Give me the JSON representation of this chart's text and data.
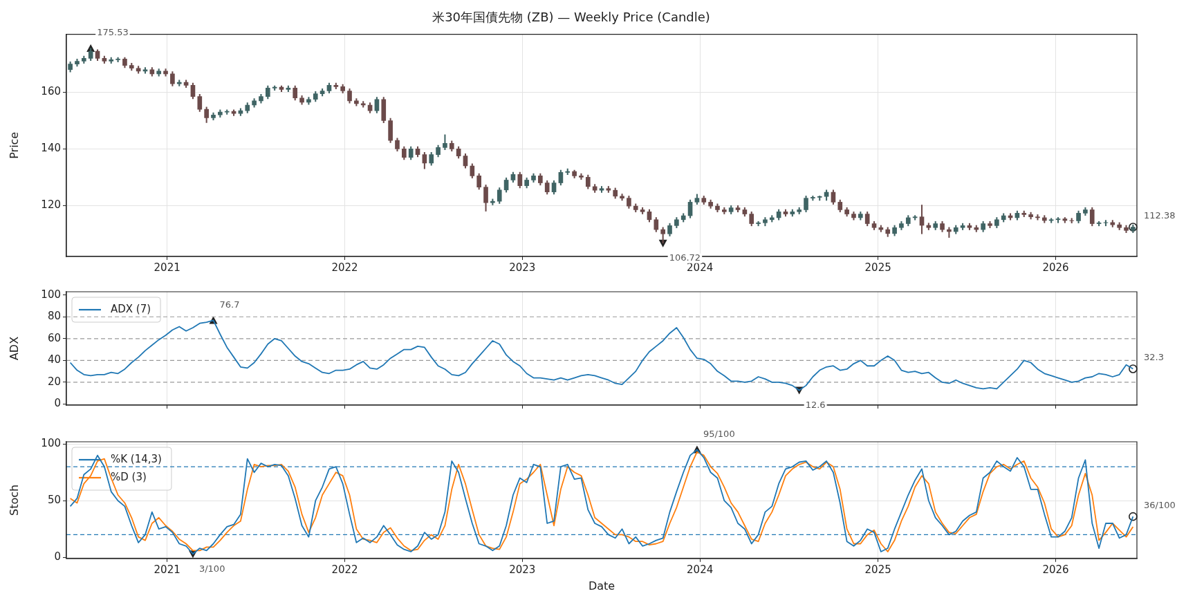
{
  "chart_data": [
    {
      "type": "candlestick",
      "title": "米30年国債先物 (ZB) — Weekly Price (Candle)",
      "ylabel": "Price",
      "grid": true,
      "colors": [
        "#3f6464",
        "#3f6464",
        "#3f6464",
        "#3f6464",
        "#6b4a4a",
        "#6b4a4a",
        "#3f6464",
        "#3f6464",
        "#6b4a4a",
        "#6b4a4a",
        "#6b4a4a",
        "#3f6464",
        "#6b4a4a",
        "#3f6464",
        "#6b4a4a",
        "#6b4a4a",
        "#3f6464",
        "#6b4a4a",
        "#6b4a4a",
        "#6b4a4a",
        "#6b4a4a",
        "#3f6464",
        "#3f6464",
        "#3f6464",
        "#6b4a4a",
        "#3f6464",
        "#3f6464",
        "#3f6464",
        "#3f6464",
        "#3f6464",
        "#3f6464",
        "#6b4a4a",
        "#3f6464",
        "#6b4a4a",
        "#6b4a4a",
        "#3f6464",
        "#3f6464",
        "#3f6464",
        "#3f6464",
        "#6b4a4a",
        "#6b4a4a",
        "#6b4a4a",
        "#6b4a4a",
        "#6b4a4a",
        "#6b4a4a",
        "#3f6464",
        "#6b4a4a",
        "#6b4a4a",
        "#6b4a4a",
        "#6b4a4a",
        "#3f6464",
        "#6b4a4a",
        "#6b4a4a",
        "#3f6464",
        "#3f6464",
        "#3f6464",
        "#6b4a4a",
        "#6b4a4a",
        "#6b4a4a",
        "#6b4a4a",
        "#6b4a4a",
        "#6b4a4a",
        "#3f6464",
        "#3f6464",
        "#3f6464",
        "#3f6464",
        "#6b4a4a",
        "#3f6464",
        "#3f6464",
        "#6b4a4a",
        "#6b4a4a",
        "#3f6464",
        "#3f6464",
        "#3f6464",
        "#6b4a4a",
        "#6b4a4a",
        "#6b4a4a",
        "#6b4a4a",
        "#3f6464",
        "#6b4a4a",
        "#6b4a4a",
        "#6b4a4a",
        "#6b4a4a",
        "#6b4a4a",
        "#6b4a4a",
        "#6b4a4a",
        "#6b4a4a",
        "#6b4a4a",
        "#3f6464",
        "#3f6464",
        "#3f6464",
        "#3f6464",
        "#3f6464",
        "#6b4a4a",
        "#6b4a4a",
        "#6b4a4a",
        "#6b4a4a",
        "#3f6464",
        "#6b4a4a",
        "#6b4a4a",
        "#6b4a4a",
        "#3f6464",
        "#3f6464",
        "#3f6464",
        "#3f6464",
        "#6b4a4a",
        "#3f6464",
        "#3f6464",
        "#3f6464",
        "#3f6464",
        "#3f6464",
        "#3f6464",
        "#6b4a4a",
        "#6b4a4a",
        "#6b4a4a",
        "#6b4a4a",
        "#3f6464",
        "#6b4a4a",
        "#6b4a4a",
        "#6b4a4a",
        "#6b4a4a",
        "#3f6464",
        "#3f6464",
        "#3f6464",
        "#3f6464",
        "#6b4a4a",
        "#6b4a4a",
        "#3f6464",
        "#6b4a4a",
        "#6b4a4a",
        "#3f6464",
        "#3f6464",
        "#6b4a4a",
        "#6b4a4a",
        "#3f6464",
        "#6b4a4a",
        "#3f6464",
        "#3f6464",
        "#6b4a4a",
        "#3f6464",
        "#6b4a4a",
        "#6b4a4a",
        "#6b4a4a",
        "#6b4a4a",
        "#3f6464",
        "#3f6464",
        "#6b4a4a",
        "#6b4a4a",
        "#3f6464",
        "#3f6464",
        "#6b4a4a",
        "#3f6464",
        "#3f6464",
        "#6b4a4a",
        "#6b4a4a",
        "#6b4a4a",
        "#3f6464"
      ],
      "xlim": [
        "2020-06-08",
        "2026-06-17"
      ],
      "xticks": [
        "2021",
        "2022",
        "2023",
        "2024",
        "2025",
        "2026"
      ],
      "ylim": [
        102,
        180.5
      ],
      "yticks": [
        120,
        140,
        160
      ],
      "x": [
        "2020-06-16",
        "2020-06-30",
        "2020-07-14",
        "2020-07-28",
        "2020-08-11",
        "2020-08-25",
        "2020-09-08",
        "2020-09-22",
        "2020-10-06",
        "2020-10-20",
        "2020-11-03",
        "2020-11-17",
        "2020-12-01",
        "2020-12-15",
        "2020-12-29",
        "2021-01-12",
        "2021-01-26",
        "2021-02-09",
        "2021-02-23",
        "2021-03-09",
        "2021-03-23",
        "2021-04-06",
        "2021-04-20",
        "2021-05-04",
        "2021-05-18",
        "2021-06-01",
        "2021-06-15",
        "2021-06-29",
        "2021-07-13",
        "2021-07-27",
        "2021-08-10",
        "2021-08-24",
        "2021-09-07",
        "2021-09-21",
        "2021-10-05",
        "2021-10-19",
        "2021-11-02",
        "2021-11-16",
        "2021-11-30",
        "2021-12-14",
        "2021-12-28",
        "2022-01-11",
        "2022-01-25",
        "2022-02-08",
        "2022-02-22",
        "2022-03-08",
        "2022-03-22",
        "2022-04-05",
        "2022-04-19",
        "2022-05-03",
        "2022-05-17",
        "2022-05-31",
        "2022-06-14",
        "2022-06-28",
        "2022-07-12",
        "2022-07-26",
        "2022-08-09",
        "2022-08-23",
        "2022-09-06",
        "2022-09-20",
        "2022-10-04",
        "2022-10-18",
        "2022-11-01",
        "2022-11-15",
        "2022-11-29",
        "2022-12-13",
        "2022-12-27",
        "2023-01-10",
        "2023-01-24",
        "2023-02-07",
        "2023-02-21",
        "2023-03-07",
        "2023-03-21",
        "2023-04-04",
        "2023-04-18",
        "2023-05-02",
        "2023-05-16",
        "2023-05-30",
        "2023-06-13",
        "2023-06-27",
        "2023-07-11",
        "2023-07-25",
        "2023-08-08",
        "2023-08-22",
        "2023-09-05",
        "2023-09-19",
        "2023-10-03",
        "2023-10-17",
        "2023-10-31",
        "2023-11-14",
        "2023-11-28",
        "2023-12-12",
        "2023-12-26",
        "2024-01-09",
        "2024-01-23",
        "2024-02-06",
        "2024-02-20",
        "2024-03-05",
        "2024-03-19",
        "2024-04-02",
        "2024-04-16",
        "2024-04-30",
        "2024-05-14",
        "2024-05-28",
        "2024-06-11",
        "2024-06-25",
        "2024-07-09",
        "2024-07-23",
        "2024-08-06",
        "2024-08-20",
        "2024-09-03",
        "2024-09-17",
        "2024-10-01",
        "2024-10-15",
        "2024-10-29",
        "2024-11-12",
        "2024-11-26",
        "2024-12-10",
        "2024-12-24",
        "2025-01-07",
        "2025-01-21",
        "2025-02-04",
        "2025-02-18",
        "2025-03-04",
        "2025-03-18",
        "2025-04-01",
        "2025-04-15",
        "2025-04-29",
        "2025-05-13",
        "2025-05-27",
        "2025-06-10",
        "2025-06-24",
        "2025-07-08",
        "2025-07-22",
        "2025-08-05",
        "2025-08-19",
        "2025-09-02",
        "2025-09-16",
        "2025-09-30",
        "2025-10-14",
        "2025-10-28",
        "2025-11-11",
        "2025-11-25",
        "2025-12-09",
        "2025-12-23",
        "2026-01-06",
        "2026-01-20",
        "2026-02-03",
        "2026-02-17",
        "2026-03-03",
        "2026-03-17",
        "2026-03-31",
        "2026-04-14",
        "2026-04-28",
        "2026-05-12",
        "2026-05-26",
        "2026-06-09"
      ],
      "ohlc": [
        [
          168,
          170.8,
          167.2,
          170
        ],
        [
          170,
          171.8,
          169.2,
          171
        ],
        [
          171,
          172.8,
          170.2,
          172
        ],
        [
          172,
          175.53,
          171.2,
          174.5
        ],
        [
          174.5,
          175.1,
          171.2,
          172
        ],
        [
          172,
          172.8,
          170.2,
          171
        ],
        [
          171,
          172.3,
          170.2,
          171.5
        ],
        [
          171.5,
          172.3,
          170.7,
          171.8
        ],
        [
          171.8,
          172.3,
          168.7,
          169.5
        ],
        [
          169.5,
          170.3,
          167.7,
          168.5
        ],
        [
          168.5,
          169.3,
          166.7,
          167.5
        ],
        [
          167.5,
          168.8,
          166.7,
          168
        ],
        [
          168,
          168.8,
          165.7,
          166.5
        ],
        [
          166.5,
          168.3,
          165.7,
          167.5
        ],
        [
          167.5,
          168.3,
          165.7,
          166.5
        ],
        [
          166.5,
          167.3,
          162.2,
          163
        ],
        [
          163,
          164.3,
          162.2,
          163.5
        ],
        [
          163.5,
          164.3,
          161.7,
          162.5
        ],
        [
          162.5,
          163.3,
          157.7,
          158.5
        ],
        [
          158.5,
          159.3,
          153.2,
          154
        ],
        [
          154,
          154.8,
          149.3,
          151
        ],
        [
          151,
          152.8,
          150.2,
          152
        ],
        [
          152,
          153.8,
          151.2,
          153
        ],
        [
          153,
          153.8,
          152.2,
          153.3
        ],
        [
          153.3,
          153.8,
          151.7,
          152.5
        ],
        [
          152.5,
          154.3,
          151.7,
          153.5
        ],
        [
          153.5,
          156.3,
          152.7,
          155.5
        ],
        [
          155.5,
          157.8,
          154.7,
          157
        ],
        [
          157,
          159.3,
          156.2,
          158.5
        ],
        [
          158.5,
          162.3,
          157.7,
          161.5
        ],
        [
          161.5,
          162.3,
          160.7,
          161.8
        ],
        [
          161.8,
          162.3,
          160.2,
          161
        ],
        [
          161,
          162.3,
          160.2,
          161.5
        ],
        [
          161.5,
          162.3,
          157.2,
          158
        ],
        [
          158,
          158.8,
          155.7,
          156.5
        ],
        [
          156.5,
          158.3,
          155.7,
          157.5
        ],
        [
          157.5,
          160.3,
          156.7,
          159.5
        ],
        [
          159.5,
          161.3,
          158.7,
          160.5
        ],
        [
          160.5,
          163.3,
          159.7,
          162.5
        ],
        [
          162.5,
          163.3,
          161.2,
          162
        ],
        [
          162,
          162.8,
          159.7,
          160.5
        ],
        [
          160.5,
          161.3,
          156.2,
          157
        ],
        [
          157,
          157.8,
          155.2,
          156
        ],
        [
          156,
          156.8,
          154.7,
          155.5
        ],
        [
          155.5,
          156.3,
          152.7,
          153.5
        ],
        [
          153.5,
          158.3,
          152.7,
          157.5
        ],
        [
          157.5,
          158.3,
          149.2,
          150
        ],
        [
          150,
          150.8,
          142.2,
          143
        ],
        [
          143,
          143.8,
          139.2,
          140
        ],
        [
          140,
          140.8,
          136.2,
          137
        ],
        [
          137,
          140.8,
          136.2,
          140
        ],
        [
          140,
          140.8,
          137.2,
          138
        ],
        [
          138,
          138.8,
          133,
          135
        ],
        [
          135,
          138.8,
          134.2,
          138
        ],
        [
          138,
          141.3,
          137.2,
          140.5
        ],
        [
          140.5,
          145,
          139.7,
          142
        ],
        [
          142,
          142.8,
          139.2,
          140
        ],
        [
          140,
          140.8,
          136.7,
          137.5
        ],
        [
          137.5,
          138.3,
          133.2,
          134
        ],
        [
          134,
          134.8,
          129.7,
          130.5
        ],
        [
          130.5,
          131.3,
          125.7,
          126.5
        ],
        [
          126.5,
          127.3,
          118,
          121
        ],
        [
          121,
          122.3,
          120.2,
          121.5
        ],
        [
          121.5,
          126.3,
          120.7,
          125.5
        ],
        [
          125.5,
          129.8,
          124.7,
          129
        ],
        [
          129,
          131.8,
          128.2,
          131
        ],
        [
          131,
          131.8,
          126.2,
          127
        ],
        [
          127,
          129.8,
          126.2,
          129
        ],
        [
          129,
          131.3,
          128.2,
          130.5
        ],
        [
          130.5,
          131.3,
          127.2,
          128
        ],
        [
          128,
          128.8,
          124,
          124.8
        ],
        [
          124.8,
          128.8,
          124,
          128
        ],
        [
          128,
          132.5,
          127.2,
          131.7
        ],
        [
          131.7,
          133,
          130.9,
          132
        ],
        [
          132,
          132.5,
          129.7,
          130.5
        ],
        [
          130.5,
          131.3,
          129.2,
          130
        ],
        [
          130,
          130.8,
          125.9,
          126.7
        ],
        [
          126.7,
          127.5,
          124.6,
          125.4
        ],
        [
          125.4,
          126.8,
          124.6,
          126
        ],
        [
          126,
          126.8,
          124.6,
          125.4
        ],
        [
          125.4,
          126.2,
          122.5,
          123.3
        ],
        [
          123.3,
          124.1,
          121.8,
          122.6
        ],
        [
          122.6,
          123.4,
          119,
          119.8
        ],
        [
          119.8,
          120.6,
          117.7,
          118.5
        ],
        [
          118.5,
          119.3,
          117,
          117.8
        ],
        [
          117.8,
          118.6,
          114.2,
          115
        ],
        [
          115,
          115.8,
          110.7,
          111.5
        ],
        [
          111.5,
          112.3,
          106.72,
          110
        ],
        [
          110,
          113.7,
          109.2,
          112.9
        ],
        [
          112.9,
          115.8,
          112.1,
          115
        ],
        [
          115,
          117.2,
          114.2,
          116.4
        ],
        [
          116.4,
          122,
          115.6,
          121.2
        ],
        [
          121.2,
          124,
          120.4,
          122.6
        ],
        [
          122.6,
          123.4,
          120.4,
          121.2
        ],
        [
          121.2,
          122,
          119,
          119.8
        ],
        [
          119.8,
          120.6,
          117.7,
          118.5
        ],
        [
          118.5,
          119.3,
          117,
          117.8
        ],
        [
          117.8,
          120,
          117,
          119.2
        ],
        [
          119.2,
          120,
          117.7,
          118.5
        ],
        [
          118.5,
          119.3,
          116.2,
          117
        ],
        [
          117,
          117.8,
          112.8,
          113.6
        ],
        [
          113.6,
          114.4,
          112.8,
          113.9
        ],
        [
          113.9,
          115.8,
          112.8,
          115
        ],
        [
          115,
          116.5,
          114.2,
          115.7
        ],
        [
          115.7,
          118.6,
          114.9,
          117.8
        ],
        [
          117.8,
          118.6,
          116.2,
          117
        ],
        [
          117,
          118.6,
          116.2,
          117.8
        ],
        [
          117.8,
          119.3,
          117,
          118.5
        ],
        [
          118.5,
          123.4,
          117.7,
          122.6
        ],
        [
          122.6,
          123.4,
          121.8,
          122.9
        ],
        [
          122.9,
          123.4,
          121.8,
          123.2
        ],
        [
          123.2,
          125.5,
          121.8,
          124.7
        ],
        [
          124.7,
          125.5,
          120.4,
          121.2
        ],
        [
          121.2,
          122,
          117.7,
          118.5
        ],
        [
          118.5,
          119.3,
          116.2,
          117
        ],
        [
          117,
          117.8,
          114.9,
          115.7
        ],
        [
          115.7,
          117.8,
          114.9,
          117
        ],
        [
          117,
          117.8,
          112.8,
          113.6
        ],
        [
          113.6,
          114.4,
          111.4,
          112.2
        ],
        [
          112.2,
          113,
          110.7,
          111.5
        ],
        [
          111.5,
          112.3,
          109,
          110.1
        ],
        [
          110.1,
          113,
          109.3,
          112.2
        ],
        [
          112.2,
          114.4,
          111.4,
          113.6
        ],
        [
          113.6,
          116.5,
          112.8,
          115.7
        ],
        [
          115.7,
          116.5,
          114.9,
          116
        ],
        [
          116,
          120.2,
          110,
          113
        ],
        [
          113,
          113.8,
          111.4,
          112.2
        ],
        [
          112.2,
          114.4,
          111.4,
          113.6
        ],
        [
          113.6,
          114.4,
          110.7,
          111.5
        ],
        [
          111.5,
          112.3,
          108.7,
          110.8
        ],
        [
          110.8,
          113,
          110,
          112.2
        ],
        [
          112.2,
          113.7,
          111.4,
          112.9
        ],
        [
          112.9,
          113.7,
          111.4,
          112.2
        ],
        [
          112.2,
          113,
          110.7,
          111.5
        ],
        [
          111.5,
          114.4,
          110.7,
          113.6
        ],
        [
          113.6,
          114.4,
          112.1,
          112.9
        ],
        [
          112.9,
          115.8,
          112.1,
          115
        ],
        [
          115,
          117.2,
          114.2,
          116.4
        ],
        [
          116.4,
          117.2,
          114.9,
          115.7
        ],
        [
          115.7,
          118.1,
          114.9,
          117.3
        ],
        [
          117.3,
          118.1,
          116,
          116.8
        ],
        [
          116.8,
          117.6,
          115.2,
          116
        ],
        [
          116,
          116.8,
          114.9,
          115.7
        ],
        [
          115.7,
          116.5,
          113.9,
          114.7
        ],
        [
          114.7,
          115.5,
          113.9,
          115
        ],
        [
          115,
          115.8,
          113.9,
          115.3
        ],
        [
          115.3,
          115.8,
          113.9,
          114.7
        ],
        [
          114.7,
          115.5,
          113.8,
          114.6
        ],
        [
          114.6,
          118.1,
          113.8,
          117.3
        ],
        [
          117.3,
          119.3,
          116.5,
          118.5
        ],
        [
          118.5,
          119.3,
          112.8,
          113.6
        ],
        [
          113.6,
          114.4,
          112.8,
          113.9
        ],
        [
          113.9,
          114.8,
          112.8,
          114
        ],
        [
          114,
          114.8,
          112.4,
          113.2
        ],
        [
          113.2,
          114,
          111.4,
          112.2
        ],
        [
          112.2,
          113,
          110.4,
          111.2
        ],
        [
          111.2,
          113.2,
          110.4,
          112.38
        ]
      ],
      "annotations": [
        {
          "text": "175.53",
          "x": "2020-07-28",
          "y": 175.53
        },
        {
          "text": "106.72",
          "x": "2023-10-17",
          "y": 106.72
        },
        {
          "text": "112.38",
          "x": "2026-06-09",
          "y": 112.38
        }
      ]
    },
    {
      "type": "line",
      "ylabel": "ADX",
      "grid": "x",
      "legend": "top left",
      "tick_labels": "y",
      "xlim": [
        "2020-06-08",
        "2026-06-17"
      ],
      "xticks": [
        "2021",
        "2022",
        "2023",
        "2024",
        "2025",
        "2026"
      ],
      "ylim": [
        -1,
        103
      ],
      "yticks": [
        0,
        20,
        40,
        60,
        80,
        100
      ],
      "x": [
        "2020-06-16",
        "2020-06-30",
        "2020-07-14",
        "2020-07-28",
        "2020-08-11",
        "2020-08-25",
        "2020-09-08",
        "2020-09-22",
        "2020-10-06",
        "2020-10-20",
        "2020-11-03",
        "2020-11-17",
        "2020-12-01",
        "2020-12-15",
        "2020-12-29",
        "2021-01-12",
        "2021-01-26",
        "2021-02-09",
        "2021-02-23",
        "2021-03-09",
        "2021-03-23",
        "2021-04-06",
        "2021-04-20",
        "2021-05-04",
        "2021-05-18",
        "2021-06-01",
        "2021-06-15",
        "2021-06-29",
        "2021-07-13",
        "2021-07-27",
        "2021-08-10",
        "2021-08-24",
        "2021-09-07",
        "2021-09-21",
        "2021-10-05",
        "2021-10-19",
        "2021-11-02",
        "2021-11-16",
        "2021-11-30",
        "2021-12-14",
        "2021-12-28",
        "2022-01-11",
        "2022-01-25",
        "2022-02-08",
        "2022-02-22",
        "2022-03-08",
        "2022-03-22",
        "2022-04-05",
        "2022-04-19",
        "2022-05-03",
        "2022-05-17",
        "2022-05-31",
        "2022-06-14",
        "2022-06-28",
        "2022-07-12",
        "2022-07-26",
        "2022-08-09",
        "2022-08-23",
        "2022-09-06",
        "2022-09-20",
        "2022-10-04",
        "2022-10-18",
        "2022-11-01",
        "2022-11-15",
        "2022-11-29",
        "2022-12-13",
        "2022-12-27",
        "2023-01-10",
        "2023-01-24",
        "2023-02-07",
        "2023-02-21",
        "2023-03-07",
        "2023-03-21",
        "2023-04-04",
        "2023-04-18",
        "2023-05-02",
        "2023-05-16",
        "2023-05-30",
        "2023-06-13",
        "2023-06-27",
        "2023-07-11",
        "2023-07-25",
        "2023-08-08",
        "2023-08-22",
        "2023-09-05",
        "2023-09-19",
        "2023-10-03",
        "2023-10-17",
        "2023-10-31",
        "2023-11-14",
        "2023-11-28",
        "2023-12-12",
        "2023-12-26",
        "2024-01-09",
        "2024-01-23",
        "2024-02-06",
        "2024-02-20",
        "2024-03-05",
        "2024-03-19",
        "2024-04-02",
        "2024-04-16",
        "2024-04-30",
        "2024-05-14",
        "2024-05-28",
        "2024-06-11",
        "2024-06-25",
        "2024-07-09",
        "2024-07-23",
        "2024-08-06",
        "2024-08-20",
        "2024-09-03",
        "2024-09-17",
        "2024-10-01",
        "2024-10-15",
        "2024-10-29",
        "2024-11-12",
        "2024-11-26",
        "2024-12-10",
        "2024-12-24",
        "2025-01-07",
        "2025-01-21",
        "2025-02-04",
        "2025-02-18",
        "2025-03-04",
        "2025-03-18",
        "2025-04-01",
        "2025-04-15",
        "2025-04-29",
        "2025-05-13",
        "2025-05-27",
        "2025-06-10",
        "2025-06-24",
        "2025-07-08",
        "2025-07-22",
        "2025-08-05",
        "2025-08-19",
        "2025-09-02",
        "2025-09-16",
        "2025-09-30",
        "2025-10-14",
        "2025-10-28",
        "2025-11-11",
        "2025-11-25",
        "2025-12-09",
        "2025-12-23",
        "2026-01-06",
        "2026-01-20",
        "2026-02-03",
        "2026-02-17",
        "2026-03-03",
        "2026-03-17",
        "2026-03-31",
        "2026-04-14",
        "2026-04-28",
        "2026-05-12",
        "2026-05-26",
        "2026-06-09"
      ],
      "series": [
        {
          "name": "ADX (7)",
          "color": "#1f77b4",
          "values": [
            38,
            31,
            27,
            26,
            27,
            27,
            29,
            28,
            32,
            38,
            43,
            49,
            54,
            59,
            63,
            68,
            71,
            67,
            70,
            74,
            75,
            76.7,
            64,
            52,
            43,
            34,
            33,
            38,
            46,
            55,
            60,
            58,
            51,
            44,
            39,
            37,
            33,
            29,
            28,
            31,
            31,
            32,
            36,
            39,
            33,
            32,
            36,
            42,
            46,
            50,
            50,
            53,
            52,
            43,
            35,
            32,
            27,
            26,
            29,
            37,
            44,
            51,
            58,
            55,
            45,
            39,
            35,
            28,
            24,
            24,
            23,
            22,
            24,
            22,
            24,
            26,
            27,
            26,
            24,
            22,
            19,
            18,
            24,
            30,
            40,
            48,
            53,
            58,
            65,
            70,
            61,
            50,
            42,
            41,
            37,
            30,
            26,
            21,
            21,
            20,
            21,
            25,
            23,
            20,
            20,
            19,
            17,
            12.6,
            17,
            25,
            31,
            34,
            35,
            31,
            32,
            37,
            40,
            35,
            35,
            40,
            44,
            40,
            31,
            29,
            30,
            28,
            29,
            24,
            20,
            19,
            22,
            19,
            17,
            15,
            14,
            15,
            14,
            20,
            26,
            32,
            40,
            38,
            32,
            28,
            26,
            24,
            22,
            20,
            21,
            24,
            25,
            28,
            27,
            25,
            27,
            36,
            32.3
          ]
        }
      ],
      "ref_lines": [
        {
          "axis": "y",
          "value": 20,
          "color": "#999999",
          "line_style": "dashed"
        },
        {
          "axis": "y",
          "value": 40,
          "color": "#999999",
          "line_style": "dashed"
        },
        {
          "axis": "y",
          "value": 60,
          "color": "#999999",
          "line_style": "dashed"
        },
        {
          "axis": "y",
          "value": 80,
          "color": "#999999",
          "line_style": "dashed"
        }
      ],
      "annotations": [
        {
          "text": "76.7",
          "x": "2021-04-06",
          "y": 76.7
        },
        {
          "text": "12.6",
          "x": "2024-07-23",
          "y": 12.6
        },
        {
          "text": "32.3",
          "x": "2026-06-09",
          "y": 32.3
        }
      ]
    },
    {
      "type": "line",
      "xlabel": "Date",
      "ylabel": "Stoch",
      "grid": true,
      "legend": "top left",
      "xlim": [
        "2020-06-08",
        "2026-06-17"
      ],
      "xticks": [
        "2021",
        "2022",
        "2023",
        "2024",
        "2025",
        "2026"
      ],
      "ylim": [
        -1,
        102
      ],
      "yticks": [
        0,
        50,
        100
      ],
      "x": [
        "2020-06-16",
        "2020-06-30",
        "2020-07-14",
        "2020-07-28",
        "2020-08-11",
        "2020-08-25",
        "2020-09-08",
        "2020-09-22",
        "2020-10-06",
        "2020-10-20",
        "2020-11-03",
        "2020-11-17",
        "2020-12-01",
        "2020-12-15",
        "2020-12-29",
        "2021-01-12",
        "2021-01-26",
        "2021-02-09",
        "2021-02-23",
        "2021-03-09",
        "2021-03-23",
        "2021-04-06",
        "2021-04-20",
        "2021-05-04",
        "2021-05-18",
        "2021-06-01",
        "2021-06-15",
        "2021-06-29",
        "2021-07-13",
        "2021-07-27",
        "2021-08-10",
        "2021-08-24",
        "2021-09-07",
        "2021-09-21",
        "2021-10-05",
        "2021-10-19",
        "2021-11-02",
        "2021-11-16",
        "2021-11-30",
        "2021-12-14",
        "2021-12-28",
        "2022-01-11",
        "2022-01-25",
        "2022-02-08",
        "2022-02-22",
        "2022-03-08",
        "2022-03-22",
        "2022-04-05",
        "2022-04-19",
        "2022-05-03",
        "2022-05-17",
        "2022-05-31",
        "2022-06-14",
        "2022-06-28",
        "2022-07-12",
        "2022-07-26",
        "2022-08-09",
        "2022-08-23",
        "2022-09-06",
        "2022-09-20",
        "2022-10-04",
        "2022-10-18",
        "2022-11-01",
        "2022-11-15",
        "2022-11-29",
        "2022-12-13",
        "2022-12-27",
        "2023-01-10",
        "2023-01-24",
        "2023-02-07",
        "2023-02-21",
        "2023-03-07",
        "2023-03-21",
        "2023-04-04",
        "2023-04-18",
        "2023-05-02",
        "2023-05-16",
        "2023-05-30",
        "2023-06-13",
        "2023-06-27",
        "2023-07-11",
        "2023-07-25",
        "2023-08-08",
        "2023-08-22",
        "2023-09-05",
        "2023-09-19",
        "2023-10-03",
        "2023-10-17",
        "2023-10-31",
        "2023-11-14",
        "2023-11-28",
        "2023-12-12",
        "2023-12-26",
        "2024-01-09",
        "2024-01-23",
        "2024-02-06",
        "2024-02-20",
        "2024-03-05",
        "2024-03-19",
        "2024-04-02",
        "2024-04-16",
        "2024-04-30",
        "2024-05-14",
        "2024-05-28",
        "2024-06-11",
        "2024-06-25",
        "2024-07-09",
        "2024-07-23",
        "2024-08-06",
        "2024-08-20",
        "2024-09-03",
        "2024-09-17",
        "2024-10-01",
        "2024-10-15",
        "2024-10-29",
        "2024-11-12",
        "2024-11-26",
        "2024-12-10",
        "2024-12-24",
        "2025-01-07",
        "2025-01-21",
        "2025-02-04",
        "2025-02-18",
        "2025-03-04",
        "2025-03-18",
        "2025-04-01",
        "2025-04-15",
        "2025-04-29",
        "2025-05-13",
        "2025-05-27",
        "2025-06-10",
        "2025-06-24",
        "2025-07-08",
        "2025-07-22",
        "2025-08-05",
        "2025-08-19",
        "2025-09-02",
        "2025-09-16",
        "2025-09-30",
        "2025-10-14",
        "2025-10-28",
        "2025-11-11",
        "2025-11-25",
        "2025-12-09",
        "2025-12-23",
        "2026-01-06",
        "2026-01-20",
        "2026-02-03",
        "2026-02-17",
        "2026-03-03",
        "2026-03-17",
        "2026-03-31",
        "2026-04-14",
        "2026-04-28",
        "2026-05-12",
        "2026-05-26",
        "2026-06-09"
      ],
      "series": [
        {
          "name": "%K (14,3)",
          "color": "#1f77b4",
          "values": [
            45,
            52,
            73,
            78,
            90,
            80,
            58,
            50,
            45,
            28,
            13,
            20,
            40,
            25,
            27,
            22,
            12,
            10,
            3,
            8,
            6,
            12,
            20,
            27,
            29,
            38,
            87,
            75,
            83,
            80,
            82,
            81,
            72,
            52,
            28,
            18,
            50,
            62,
            78,
            80,
            65,
            38,
            13,
            17,
            13,
            18,
            28,
            20,
            11,
            7,
            5,
            10,
            22,
            16,
            20,
            40,
            85,
            75,
            52,
            30,
            12,
            10,
            6,
            10,
            28,
            55,
            70,
            66,
            82,
            80,
            30,
            32,
            80,
            82,
            69,
            70,
            42,
            30,
            27,
            20,
            17,
            25,
            12,
            18,
            10,
            12,
            15,
            17,
            40,
            58,
            75,
            90,
            95,
            88,
            75,
            70,
            50,
            44,
            30,
            25,
            12,
            20,
            40,
            45,
            65,
            78,
            80,
            84,
            85,
            77,
            80,
            85,
            75,
            48,
            14,
            10,
            15,
            25,
            22,
            5,
            8,
            25,
            40,
            55,
            68,
            78,
            50,
            35,
            28,
            20,
            23,
            32,
            37,
            40,
            70,
            75,
            85,
            80,
            76,
            88,
            80,
            60,
            60,
            38,
            18,
            18,
            23,
            35,
            70,
            86,
            30,
            8,
            30,
            30,
            17,
            20,
            36
          ]
        },
        {
          "name": "%D (3)",
          "color": "#ff7f0e",
          "values": [
            52,
            48,
            65,
            72,
            85,
            87,
            70,
            55,
            48,
            35,
            18,
            15,
            30,
            35,
            28,
            23,
            16,
            12,
            6,
            6,
            9,
            9,
            15,
            22,
            28,
            32,
            60,
            82,
            80,
            81,
            81,
            82,
            76,
            62,
            38,
            22,
            35,
            55,
            65,
            75,
            72,
            55,
            25,
            16,
            15,
            13,
            22,
            26,
            17,
            10,
            6,
            7,
            15,
            20,
            16,
            28,
            60,
            82,
            65,
            42,
            20,
            10,
            8,
            7,
            18,
            40,
            65,
            69,
            75,
            82,
            55,
            28,
            60,
            80,
            75,
            72,
            55,
            35,
            30,
            25,
            20,
            20,
            18,
            14,
            14,
            11,
            12,
            14,
            30,
            44,
            62,
            80,
            93,
            90,
            80,
            74,
            62,
            48,
            40,
            28,
            16,
            14,
            30,
            40,
            55,
            72,
            78,
            82,
            84,
            80,
            78,
            84,
            80,
            60,
            25,
            12,
            12,
            20,
            24,
            12,
            5,
            15,
            32,
            45,
            62,
            72,
            65,
            40,
            30,
            22,
            21,
            28,
            35,
            38,
            58,
            74,
            80,
            82,
            78,
            82,
            85,
            70,
            62,
            48,
            25,
            18,
            20,
            28,
            55,
            74,
            55,
            15,
            22,
            30,
            24,
            18,
            27
          ]
        }
      ],
      "ref_lines": [
        {
          "axis": "y",
          "value": 20,
          "color": "#1f77b4",
          "line_style": "dashed"
        },
        {
          "axis": "y",
          "value": 80,
          "color": "#1f77b4",
          "line_style": "dashed"
        }
      ],
      "annotations": [
        {
          "text": "3/100",
          "x": "2021-02-23",
          "y": 3
        },
        {
          "text": "95/100",
          "x": "2023-12-26",
          "y": 95
        },
        {
          "text": "36/100",
          "x": "2026-06-09",
          "y": 36
        }
      ]
    }
  ]
}
